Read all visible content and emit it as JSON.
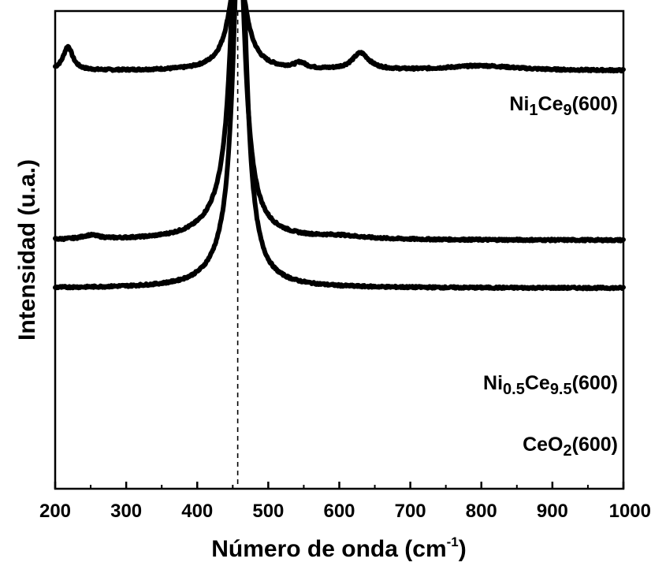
{
  "chart_data": {
    "type": "line",
    "title": "",
    "xlabel": "Número de onda (cm",
    "xlabel_sup": "-1",
    "xlabel_close": ")",
    "ylabel": "Intensidad (u.a.)",
    "xlim": [
      200,
      1000
    ],
    "xticks": [
      200,
      300,
      400,
      500,
      600,
      700,
      800,
      900,
      1000
    ],
    "xtick_labels": [
      "200",
      "300",
      "400",
      "500",
      "600",
      "700",
      "800",
      "900",
      "1000"
    ],
    "yticks_shown": false,
    "grid": false,
    "reference_line": {
      "x": 457,
      "style": "dashed"
    },
    "series": [
      {
        "name": "Ni1Ce9(600)",
        "label_parts": [
          {
            "t": "Ni",
            "s": ""
          },
          {
            "t": "1",
            "s": "sub"
          },
          {
            "t": "Ce",
            "s": ""
          },
          {
            "t": "9",
            "s": "sub"
          },
          {
            "t": "(600)",
            "s": ""
          }
        ],
        "baseline": 0.875,
        "peaks": [
          {
            "x": 457,
            "height": 0.22,
            "width": 14
          },
          {
            "x": 218,
            "height": 0.05,
            "width": 8
          },
          {
            "x": 545,
            "height": 0.012,
            "width": 10
          },
          {
            "x": 630,
            "height": 0.035,
            "width": 14
          },
          {
            "x": 800,
            "height": 0.01,
            "width": 60
          }
        ]
      },
      {
        "name": "Ni0.5Ce9.5(600)",
        "label_parts": [
          {
            "t": "Ni",
            "s": ""
          },
          {
            "t": "0.5",
            "s": "sub"
          },
          {
            "t": "Ce",
            "s": ""
          },
          {
            "t": "9.5",
            "s": "sub"
          },
          {
            "t": "(600)",
            "s": ""
          }
        ],
        "baseline": 0.52,
        "peaks": [
          {
            "x": 457,
            "height": 0.72,
            "width": 11
          },
          {
            "x": 440,
            "height": 0.035,
            "width": 35
          },
          {
            "x": 250,
            "height": 0.008,
            "width": 15
          },
          {
            "x": 600,
            "height": 0.006,
            "width": 40
          }
        ]
      },
      {
        "name": "CeO2(600)",
        "label_parts": [
          {
            "t": "CeO",
            "s": ""
          },
          {
            "t": "2",
            "s": "sub"
          },
          {
            "t": "(600)",
            "s": ""
          }
        ],
        "baseline": 0.42,
        "peaks": [
          {
            "x": 460,
            "height": 0.8,
            "width": 11
          },
          {
            "x": 440,
            "height": 0.025,
            "width": 30
          }
        ]
      }
    ]
  }
}
